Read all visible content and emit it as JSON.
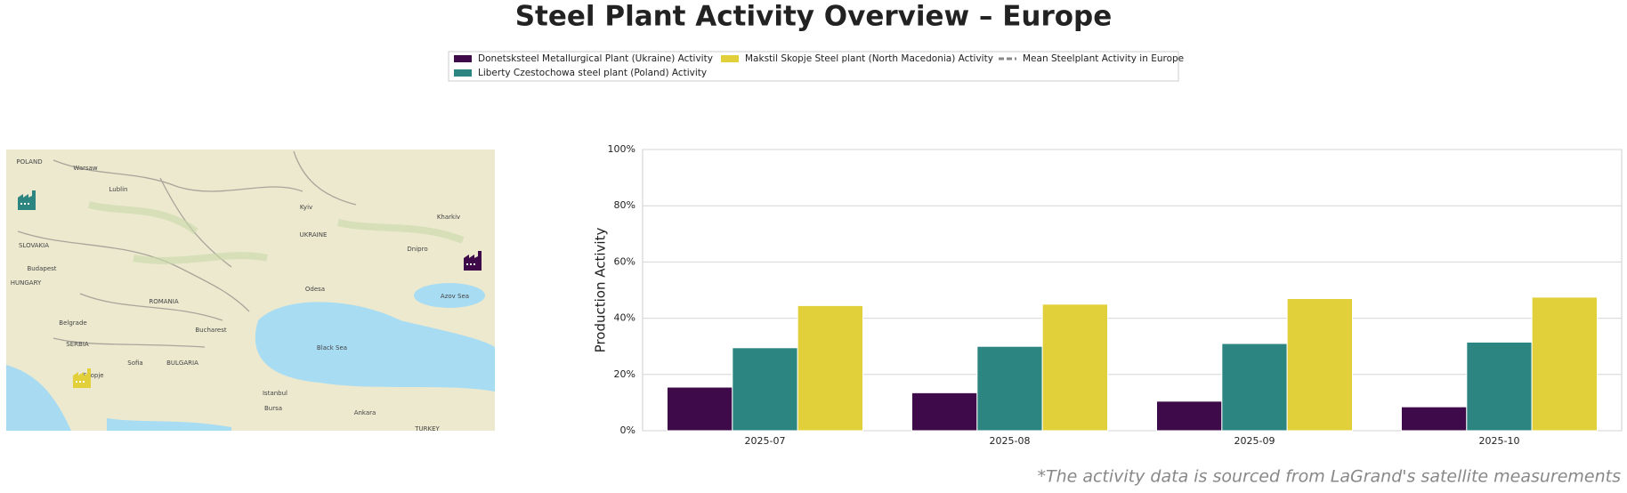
{
  "chart_data": {
    "type": "bar",
    "title": "Steel Plant Activity Overview – Europe",
    "y_label": "Production Activity",
    "footnote": "*The activity data is sourced from LaGrand's satellite measurements",
    "categories": [
      "2025-07",
      "2025-08",
      "2025-09",
      "2025-10"
    ],
    "series": [
      {
        "name": "Donetsksteel Metallurgical Plant (Ukraine) Activity",
        "color": "#3f0a4a",
        "values": [
          15.5,
          13.5,
          10.5,
          8.5
        ]
      },
      {
        "name": "Liberty Czestochowa steel plant (Poland) Activity",
        "color": "#2c8580",
        "values": [
          29.5,
          30,
          31,
          31.5
        ]
      },
      {
        "name": "Makstil Skopje Steel plant (North Macedonia) Activity",
        "color": "#e2d03b",
        "values": [
          44.5,
          45,
          47,
          47.5
        ]
      },
      {
        "name": "Mean Steelplant Activity in Europe",
        "color": "#888888",
        "line_style": "dashed",
        "values": [
          null,
          null,
          null,
          null
        ]
      }
    ],
    "ylim": [
      0,
      100
    ],
    "yticks": [
      {
        "value": 0,
        "label": "0%"
      },
      {
        "value": 20,
        "label": "20%"
      },
      {
        "value": 40,
        "label": "40%"
      },
      {
        "value": 60,
        "label": "60%"
      },
      {
        "value": 80,
        "label": "80%"
      },
      {
        "value": 100,
        "label": "100%"
      }
    ],
    "grid": true
  },
  "map": {
    "labels": [
      "POLAND",
      "Warsaw",
      "Lublin",
      "Kyiv",
      "UKRAINE",
      "Kharkiv",
      "Dnipro",
      "SLOVAKIA",
      "HUNGARY",
      "Budapest",
      "ROMANIA",
      "Bucharest",
      "Odesa",
      "Black Sea",
      "Azov Sea",
      "SERBIA",
      "Belgrade",
      "BULGARIA",
      "Sofia",
      "Skopje",
      "Istanbul",
      "Ankara",
      "TURKEY",
      "Bursa"
    ]
  }
}
